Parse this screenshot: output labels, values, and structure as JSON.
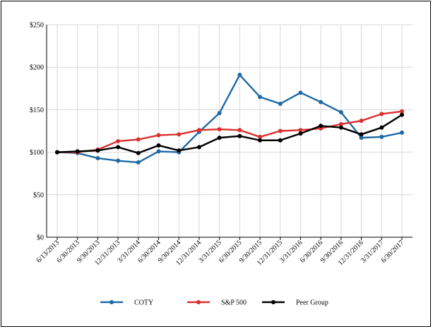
{
  "chart_data": {
    "type": "line",
    "title": "",
    "xlabel": "",
    "ylabel": "",
    "ylim": [
      0,
      250
    ],
    "yticks": [
      0,
      50,
      100,
      150,
      200,
      250
    ],
    "ytick_labels": [
      "$0",
      "$50",
      "$100",
      "$150",
      "$200",
      "$250"
    ],
    "categories": [
      "6/13/2013",
      "6/30/2013",
      "9/30/2013",
      "12/31/2013",
      "3/31/2014",
      "6/30/2014",
      "9/30/2014",
      "12/31/2014",
      "3/31/2015",
      "6/30/2015",
      "9/30/2015",
      "12/31/2015",
      "3/31/2016",
      "6/30/2016",
      "9/30/2016",
      "12/31/2016",
      "3/31/2017",
      "6/30/2017"
    ],
    "grid": true,
    "legend": "bottom",
    "series": [
      {
        "name": "COTY",
        "color": "#1f6aa5",
        "values": [
          100,
          99,
          93,
          90,
          88,
          101,
          100,
          124,
          146,
          191,
          165,
          157,
          170,
          159,
          147,
          117,
          118,
          123
        ]
      },
      {
        "name": "S&P 500",
        "color": "#d93030",
        "values": [
          100,
          100,
          103,
          113,
          115,
          120,
          121,
          126,
          127,
          126,
          118,
          125,
          126,
          128,
          133,
          137,
          145,
          148
        ]
      },
      {
        "name": "Peer Group",
        "color": "#000000",
        "values": [
          100,
          101,
          102,
          106,
          99,
          108,
          102,
          106,
          117,
          119,
          114,
          114,
          122,
          131,
          129,
          121,
          129,
          144
        ]
      }
    ]
  }
}
